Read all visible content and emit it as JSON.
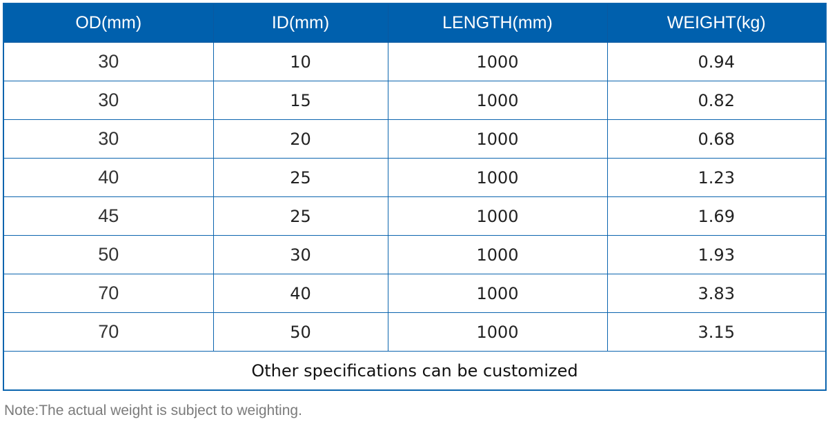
{
  "table": {
    "headers": [
      "OD(mm)",
      "ID(mm)",
      "LENGTH(mm)",
      "WEIGHT(kg)"
    ],
    "rows": [
      [
        "30",
        "10",
        "1000",
        "0.94"
      ],
      [
        "30",
        "15",
        "1000",
        "0.82"
      ],
      [
        "30",
        "20",
        "1000",
        "0.68"
      ],
      [
        "40",
        "25",
        "1000",
        "1.23"
      ],
      [
        "45",
        "25",
        "1000",
        "1.69"
      ],
      [
        "50",
        "30",
        "1000",
        "1.93"
      ],
      [
        "70",
        "40",
        "1000",
        "3.83"
      ],
      [
        "70",
        "50",
        "1000",
        "3.15"
      ]
    ],
    "footer": "Other specifications can be customized"
  },
  "note": "Note:The actual weight is subject to weighting.",
  "colors": {
    "header_bg": "#0060ad",
    "border": "#0a64ae",
    "note": "#7b7b7b"
  }
}
